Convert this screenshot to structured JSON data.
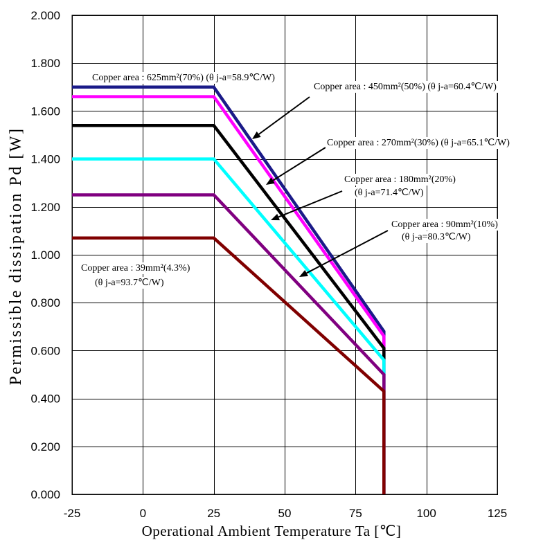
{
  "chart_data": {
    "type": "line",
    "xlabel": "Operational Ambient Temperature Ta [℃]",
    "ylabel": "Permissible dissipation Pd [W]",
    "xlim": [
      -25,
      125
    ],
    "ylim": [
      0,
      2
    ],
    "grid": true,
    "x_ticks": [
      -25,
      0,
      25,
      50,
      75,
      100,
      125
    ],
    "x_tick_labels": [
      "-25",
      "0",
      "25",
      "50",
      "75",
      "100",
      "125"
    ],
    "y_ticks": [
      0,
      0.2,
      0.4,
      0.6,
      0.8,
      1.0,
      1.2,
      1.4,
      1.6,
      1.8,
      2.0
    ],
    "y_tick_labels": [
      "0.000",
      "0.200",
      "0.400",
      "0.600",
      "0.800",
      "1.000",
      "1.200",
      "1.400",
      "1.600",
      "1.800",
      "2.000"
    ],
    "series": [
      {
        "color": "#1a1a88",
        "x": [
          -25,
          25,
          85,
          85
        ],
        "y": [
          1.7,
          1.7,
          0.68,
          0
        ],
        "annotation": [
          "Copper area : 625mm²(70%) (θ j-a=58.9℃/W)"
        ]
      },
      {
        "color": "#ff00ff",
        "x": [
          -25,
          25,
          85,
          85
        ],
        "y": [
          1.66,
          1.66,
          0.66,
          0
        ],
        "annotation": [
          "Copper area : 450mm²(50%) (θ j-a=60.4℃/W)"
        ]
      },
      {
        "color": "#000000",
        "x": [
          -25,
          25,
          85,
          85
        ],
        "y": [
          1.54,
          1.54,
          0.61,
          0
        ],
        "annotation": [
          "Copper area : 270mm²(30%) (θ j-a=65.1℃/W)"
        ]
      },
      {
        "color": "#00ffff",
        "x": [
          -25,
          25,
          85,
          85
        ],
        "y": [
          1.4,
          1.4,
          0.56,
          0
        ],
        "annotation": [
          "Copper area : 180mm²(20%)",
          "(θ j-a=71.4℃/W)"
        ]
      },
      {
        "color": "#800080",
        "x": [
          -25,
          25,
          85,
          85
        ],
        "y": [
          1.25,
          1.25,
          0.5,
          0
        ],
        "annotation": [
          "Copper area : 90mm²(10%)",
          "(θ j-a=80.3℃/W)"
        ]
      },
      {
        "color": "#800000",
        "x": [
          -25,
          25,
          85,
          85
        ],
        "y": [
          1.07,
          1.07,
          0.43,
          0
        ],
        "annotation": [
          "Copper area : 39mm²(4.3%)",
          "(θ j-a=93.7℃/W)"
        ]
      }
    ]
  }
}
